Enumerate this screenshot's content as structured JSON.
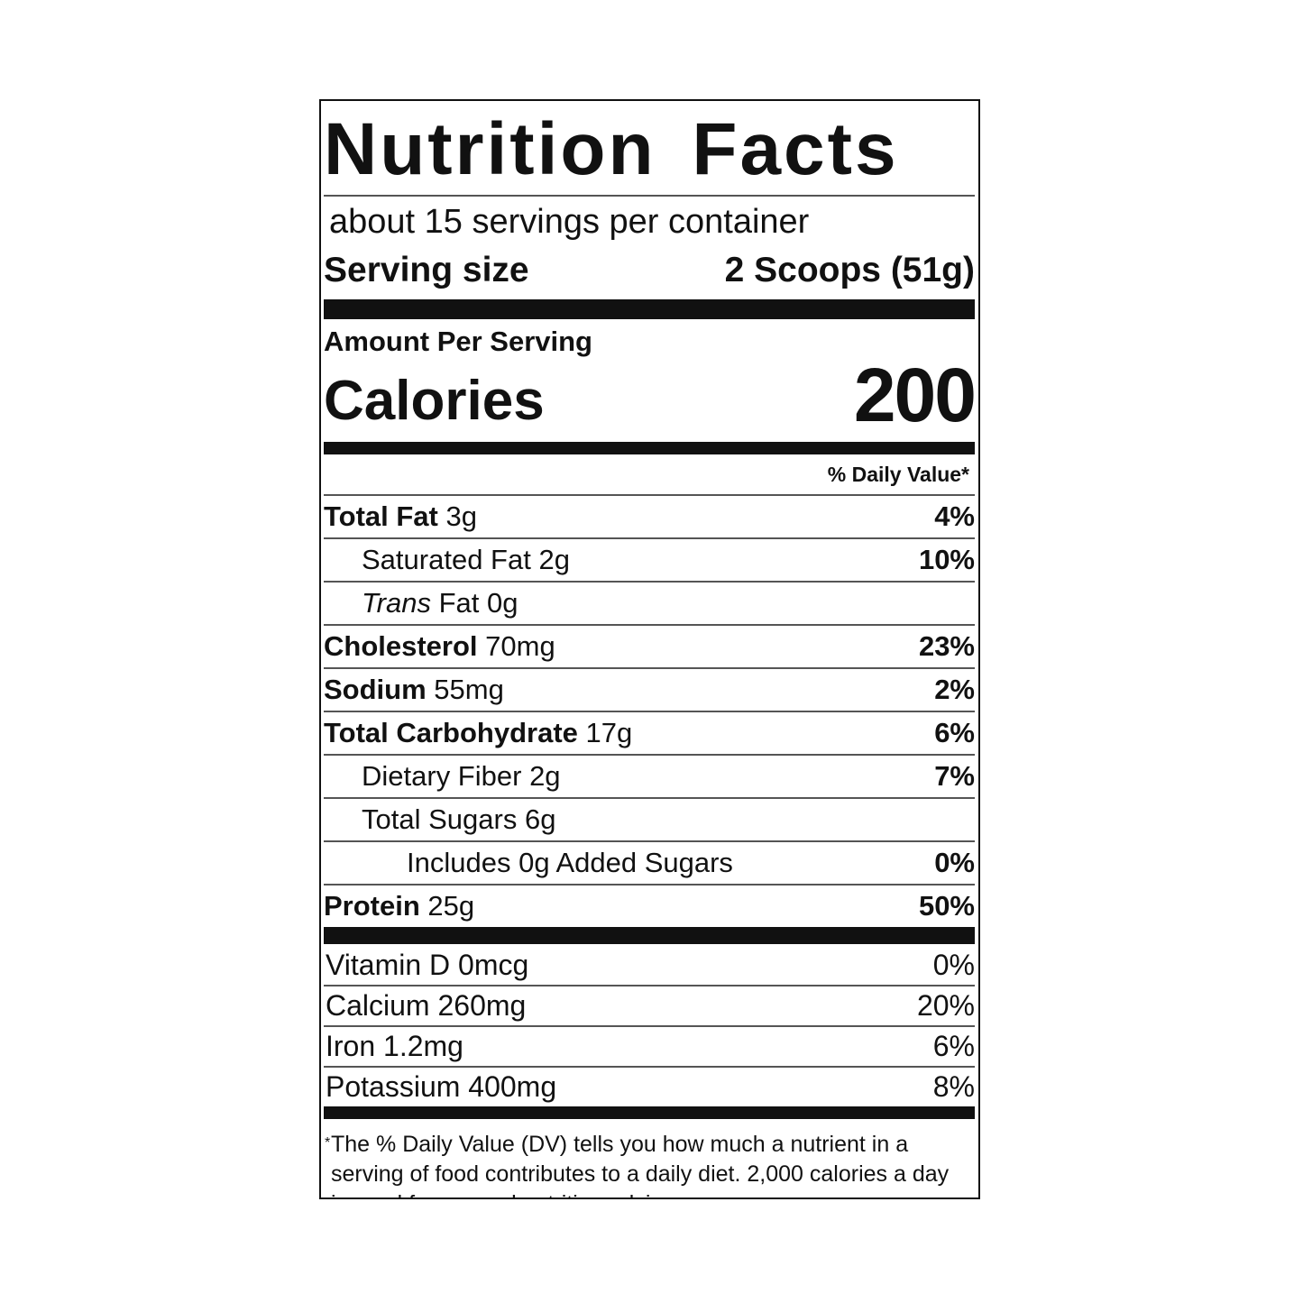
{
  "title": "Nutrition Facts",
  "servings": "about 15 servings per container",
  "serving_size": {
    "label": "Serving size",
    "value": "2 Scoops (51g)"
  },
  "amount_per_serving": "Amount Per Serving",
  "calories": {
    "label": "Calories",
    "value": "200"
  },
  "daily_value_header": "% Daily Value*",
  "nutrients": [
    {
      "name": "Total Fat",
      "amount": "3g",
      "dv": "4%",
      "level": 0
    },
    {
      "name": "Saturated Fat",
      "amount": "2g",
      "dv": "10%",
      "level": 1
    },
    {
      "italic": "Trans",
      "name": "Fat",
      "amount": "0g",
      "level": 1
    },
    {
      "name": "Cholesterol",
      "amount": "70mg",
      "dv": "23%",
      "level": 0
    },
    {
      "name": "Sodium",
      "amount": "55mg",
      "dv": "2%",
      "level": 0
    },
    {
      "name": "Total Carbohydrate",
      "amount": "17g",
      "dv": "6%",
      "level": 0
    },
    {
      "name": "Dietary Fiber",
      "amount": "2g",
      "dv": "7%",
      "level": 1
    },
    {
      "name": "Total Sugars",
      "amount": "6g",
      "level": 1
    },
    {
      "name": "Includes 0g Added Sugars",
      "dv": "0%",
      "level": 2
    },
    {
      "name": "Protein",
      "amount": "25g",
      "dv": "50%",
      "level": 0
    }
  ],
  "vitamins": [
    {
      "label": "Vitamin D 0mcg",
      "dv": "0%"
    },
    {
      "label": "Calcium 260mg",
      "dv": "20%"
    },
    {
      "label": "Iron 1.2mg",
      "dv": "6%"
    },
    {
      "label": "Potassium 400mg",
      "dv": "8%"
    }
  ],
  "footnote": {
    "marker": "*",
    "text": "The % Daily Value (DV) tells you how much a nutrient in a serving of food contributes to a daily diet. 2,000 calories a day is used for general nutrition advice."
  }
}
